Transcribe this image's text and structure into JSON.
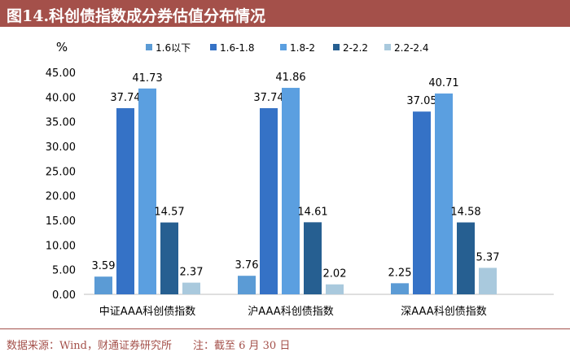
{
  "title": "图14.科创债指数成分券估值分布情况",
  "source": "数据来源：Wind，财通证券研究所　　注：截至 6 月 30 日",
  "colors": {
    "title_bar": "#a4504a",
    "series": [
      "#5b9bd5",
      "#3572c6",
      "#5b9fe0",
      "#265f91",
      "#a9c9dd"
    ]
  },
  "chart_data": {
    "type": "bar",
    "ylabel": "%",
    "ylim": [
      0,
      45
    ],
    "yticks": [
      "0.00",
      "5.00",
      "10.00",
      "15.00",
      "20.00",
      "25.00",
      "30.00",
      "35.00",
      "40.00",
      "45.00"
    ],
    "categories": [
      "中证AAA科创债指数",
      "沪AAA科创债指数",
      "深AAA科创债指数"
    ],
    "legend_position": "top",
    "grid": false,
    "series": [
      {
        "name": "1.6以下",
        "values": [
          3.59,
          3.76,
          2.25
        ],
        "labels": [
          "3.59",
          "3.76",
          "2.25"
        ]
      },
      {
        "name": "1.6-1.8",
        "values": [
          37.74,
          37.74,
          37.05
        ],
        "labels": [
          "37.74",
          "37.74",
          "37.05"
        ]
      },
      {
        "name": "1.8-2",
        "values": [
          41.73,
          41.86,
          40.71
        ],
        "labels": [
          "41.73",
          "41.86",
          "40.71"
        ]
      },
      {
        "name": "2-2.2",
        "values": [
          14.57,
          14.61,
          14.58
        ],
        "labels": [
          "14.57",
          "14.61",
          "14.58"
        ]
      },
      {
        "name": "2.2-2.4",
        "values": [
          2.37,
          2.02,
          5.37
        ],
        "labels": [
          "2.37",
          "2.02",
          "5.37"
        ]
      }
    ]
  }
}
